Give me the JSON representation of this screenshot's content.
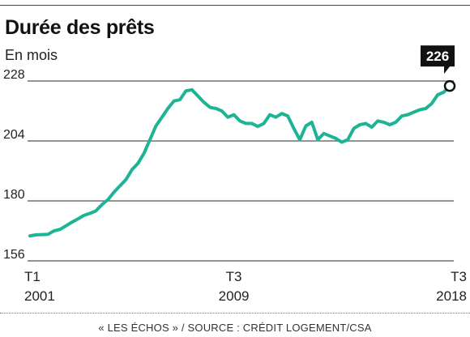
{
  "header": {
    "title": "Durée des prêts",
    "subtitle": "En mois"
  },
  "footer": {
    "source": "« LES ÉCHOS » / SOURCE : CRÉDIT LOGEMENT/CSA"
  },
  "colors": {
    "line": "#1db395",
    "grid": "#555555",
    "callout_bg": "#111111"
  },
  "chart_data": {
    "type": "line",
    "title": "Durée des prêts",
    "ylabel": "En mois",
    "xlabel": "",
    "ylim": [
      156,
      228
    ],
    "yticks": [
      228,
      204,
      180,
      156
    ],
    "x_tick_labels": [
      {
        "q": "T1",
        "year": "2001",
        "x": 0
      },
      {
        "q": "T3",
        "year": "2009",
        "x": 34
      },
      {
        "q": "T3",
        "year": "2018",
        "x": 70
      }
    ],
    "x_range": [
      0,
      70
    ],
    "callout": {
      "label": "226",
      "value": 226
    },
    "series": [
      {
        "values": [
          {
            "x": 0,
            "y": 166.0
          },
          {
            "x": 1,
            "y": 166.4
          },
          {
            "x": 2,
            "y": 166.5
          },
          {
            "x": 3,
            "y": 166.6
          },
          {
            "x": 4,
            "y": 168.0
          },
          {
            "x": 5,
            "y": 168.6
          },
          {
            "x": 6,
            "y": 170.0
          },
          {
            "x": 7,
            "y": 171.5
          },
          {
            "x": 8,
            "y": 172.8
          },
          {
            "x": 9,
            "y": 174.2
          },
          {
            "x": 10,
            "y": 175.0
          },
          {
            "x": 11,
            "y": 176.0
          },
          {
            "x": 12,
            "y": 178.5
          },
          {
            "x": 13,
            "y": 180.5
          },
          {
            "x": 14,
            "y": 183.5
          },
          {
            "x": 15,
            "y": 186.0
          },
          {
            "x": 16,
            "y": 188.5
          },
          {
            "x": 17,
            "y": 192.5
          },
          {
            "x": 18,
            "y": 195.0
          },
          {
            "x": 19,
            "y": 199.0
          },
          {
            "x": 20,
            "y": 204.5
          },
          {
            "x": 21,
            "y": 210.0
          },
          {
            "x": 22,
            "y": 213.5
          },
          {
            "x": 23,
            "y": 217.0
          },
          {
            "x": 24,
            "y": 220.0
          },
          {
            "x": 25,
            "y": 220.5
          },
          {
            "x": 26,
            "y": 224.0
          },
          {
            "x": 27,
            "y": 224.5
          },
          {
            "x": 28,
            "y": 222.0
          },
          {
            "x": 29,
            "y": 219.5
          },
          {
            "x": 30,
            "y": 217.5
          },
          {
            "x": 31,
            "y": 217.0
          },
          {
            "x": 32,
            "y": 216.0
          },
          {
            "x": 33,
            "y": 213.5
          },
          {
            "x": 34,
            "y": 214.5
          },
          {
            "x": 35,
            "y": 212.0
          },
          {
            "x": 36,
            "y": 211.0
          },
          {
            "x": 37,
            "y": 211.0
          },
          {
            "x": 38,
            "y": 209.8
          },
          {
            "x": 39,
            "y": 211.0
          },
          {
            "x": 40,
            "y": 214.5
          },
          {
            "x": 41,
            "y": 213.5
          },
          {
            "x": 42,
            "y": 215.0
          },
          {
            "x": 43,
            "y": 214.0
          },
          {
            "x": 44,
            "y": 209.0
          },
          {
            "x": 45,
            "y": 204.5
          },
          {
            "x": 46,
            "y": 210.0
          },
          {
            "x": 47,
            "y": 211.5
          },
          {
            "x": 48,
            "y": 204.5
          },
          {
            "x": 49,
            "y": 207.0
          },
          {
            "x": 50,
            "y": 206.0
          },
          {
            "x": 51,
            "y": 205.0
          },
          {
            "x": 52,
            "y": 203.5
          },
          {
            "x": 53,
            "y": 204.5
          },
          {
            "x": 54,
            "y": 209.0
          },
          {
            "x": 55,
            "y": 210.5
          },
          {
            "x": 56,
            "y": 211.0
          },
          {
            "x": 57,
            "y": 209.5
          },
          {
            "x": 58,
            "y": 212.0
          },
          {
            "x": 59,
            "y": 211.5
          },
          {
            "x": 60,
            "y": 210.5
          },
          {
            "x": 61,
            "y": 211.5
          },
          {
            "x": 62,
            "y": 214.0
          },
          {
            "x": 63,
            "y": 214.5
          },
          {
            "x": 64,
            "y": 215.5
          },
          {
            "x": 65,
            "y": 216.5
          },
          {
            "x": 66,
            "y": 217.0
          },
          {
            "x": 67,
            "y": 219.0
          },
          {
            "x": 68,
            "y": 222.5
          },
          {
            "x": 69,
            "y": 223.5
          },
          {
            "x": 70,
            "y": 226.0
          }
        ]
      }
    ]
  }
}
